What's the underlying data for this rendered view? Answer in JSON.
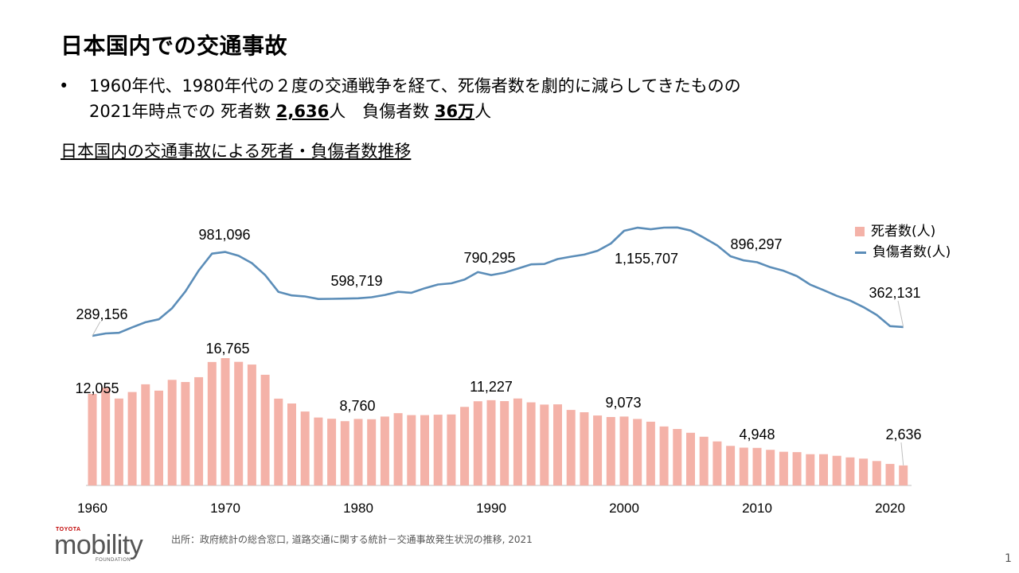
{
  "title": "日本国内での交通事故",
  "bullet": {
    "line1": "1960年代、1980年代の２度の交通戦争を経て、死傷者数を劇的に減らしてきたものの",
    "line2_prefix": "2021年時点での 死者数 ",
    "deaths_value": "2,636",
    "line2_mid": "人　負傷者数 ",
    "injured_value": "36万",
    "line2_suffix": "人"
  },
  "subtitle": "日本国内の交通事故による死者・負傷者数推移",
  "legend": {
    "deaths": "死者数(人)",
    "injured": "負傷者数(人)"
  },
  "source": "出所：政府統計の総合窓口, 道路交通に関する統計－交通事故発生状況の推移, 2021",
  "page_number": "1",
  "logo": {
    "top": "TOYOTA",
    "main": "mobility",
    "bottom": "FOUNDATION"
  },
  "colors": {
    "bar": "#f4b2a8",
    "line": "#5b8db8"
  },
  "chart_data": {
    "type": "bar",
    "x": [
      1960,
      1961,
      1962,
      1963,
      1964,
      1965,
      1966,
      1967,
      1968,
      1969,
      1970,
      1971,
      1972,
      1973,
      1974,
      1975,
      1976,
      1977,
      1978,
      1979,
      1980,
      1981,
      1982,
      1983,
      1984,
      1985,
      1986,
      1987,
      1988,
      1989,
      1990,
      1991,
      1992,
      1993,
      1994,
      1995,
      1996,
      1997,
      1998,
      1999,
      2000,
      2001,
      2002,
      2003,
      2004,
      2005,
      2006,
      2007,
      2008,
      2009,
      2010,
      2011,
      2012,
      2013,
      2014,
      2015,
      2016,
      2017,
      2018,
      2019,
      2020,
      2021
    ],
    "x_ticks": [
      "1960",
      "1970",
      "1980",
      "1990",
      "2000",
      "2010",
      "2020"
    ],
    "series": [
      {
        "name": "死者数(人)",
        "type": "bar",
        "values": [
          12055,
          12865,
          11445,
          12301,
          13318,
          12484,
          13904,
          13618,
          14256,
          16257,
          16765,
          16278,
          15918,
          14574,
          11432,
          10792,
          9734,
          8945,
          8783,
          8466,
          8760,
          8719,
          9073,
          9520,
          9262,
          9261,
          9317,
          9347,
          10344,
          11086,
          11227,
          11105,
          11451,
          10942,
          10649,
          10679,
          9942,
          9640,
          9211,
          9012,
          9073,
          8757,
          8396,
          7768,
          7436,
          6937,
          6415,
          5796,
          5209,
          4979,
          4948,
          4691,
          4438,
          4388,
          4113,
          4117,
          3904,
          3694,
          3532,
          3215,
          2839,
          2636
        ],
        "labels": {
          "1960": "12,055",
          "1970": "16,765",
          "1980": "8,760",
          "1990": "11,227",
          "2000": "9,073",
          "2010": "4,948",
          "2021": "2,636"
        }
      },
      {
        "name": "負傷者数(人)",
        "type": "line",
        "values": [
          289156,
          308697,
          313813,
          359089,
          401117,
          425666,
          517775,
          655377,
          828071,
          967000,
          981096,
          949689,
          889198,
          789948,
          651420,
          622467,
          613957,
          593211,
          594116,
          596282,
          598719,
          607346,
          626192,
          652053,
          644321,
          681346,
          712330,
          722179,
          752845,
          814832,
          790295,
          810245,
          844003,
          878633,
          881723,
          922677,
          942204,
          958925,
          990675,
          1050399,
          1155707,
          1181039,
          1168029,
          1181681,
          1183120,
          1157113,
          1098564,
          1034652,
          945703,
          911215,
          896297,
          854613,
          825396,
          781492,
          711374,
          666023,
          618853,
          579746,
          525846,
          461775,
          369476,
          362131
        ],
        "labels": {
          "1960": "289,156",
          "1970": "981,096",
          "1980": "598,719",
          "1990": "790,295",
          "2000": "1,155,707",
          "2010": "896,297",
          "2021": "362,131"
        }
      }
    ]
  }
}
